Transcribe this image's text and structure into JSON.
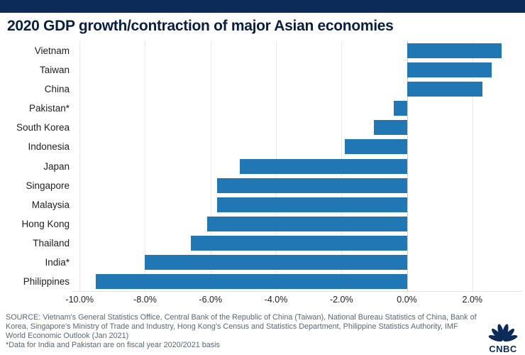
{
  "chart_data": {
    "type": "bar",
    "orientation": "horizontal",
    "title": "2020 GDP growth/contraction of major Asian economies",
    "categories": [
      "Vietnam",
      "Taiwan",
      "China",
      "Pakistan*",
      "South Korea",
      "Indonesia",
      "Japan",
      "Singapore",
      "Malaysia",
      "Hong Kong",
      "Thailand",
      "India*",
      "Philippines"
    ],
    "values": [
      2.9,
      2.6,
      2.3,
      -0.4,
      -1.0,
      -1.9,
      -5.1,
      -5.8,
      -5.8,
      -6.1,
      -6.6,
      -8.0,
      -9.5
    ],
    "value_unit": "%",
    "x_ticks": [
      -10,
      -8,
      -6,
      -4,
      -2,
      0,
      2
    ],
    "x_tick_labels": [
      "-10.0%",
      "-8.0%",
      "-6.0%",
      "-4.0%",
      "-2.0%",
      "0.0%",
      "2.0%"
    ],
    "xlim": [
      -10.2,
      3.5
    ],
    "grid": "vertical",
    "zero_line": "dotted",
    "legend": "none",
    "bar_color": "#2177b4"
  },
  "colors": {
    "accent_band": "#0d2b58",
    "title_text": "#0a1f3e",
    "bar_blue": "#2177b4",
    "footer_text": "#5a6672",
    "logo_navy": "#0d2b58"
  },
  "footer": {
    "source": "SOURCE: Vietnam's General Statistics Office, Central Bank of the Republic of China (Taiwan), National Bureau Statistics of China, Bank of Korea, Singapore's Ministry of Trade and Industry, Hong Kong's Census and Statistics Department, Philippine Statistics Authority, IMF World Economic Outlook (Jan 2021)",
    "footnote": "*Data for India and Pakistan are on fiscal year 2020/2021 basis",
    "logo_text": "CNBC"
  }
}
